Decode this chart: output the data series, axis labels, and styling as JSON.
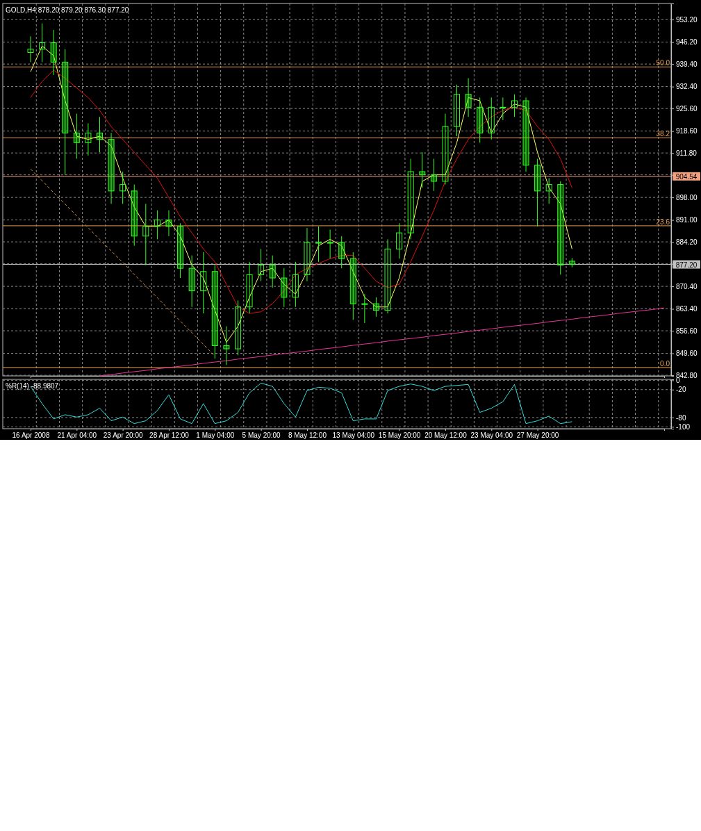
{
  "chart_data": [
    {
      "type": "candlestick",
      "title": "GOLD,H4  878.20 879.20 876.30 877.20",
      "categories": [
        null,
        null,
        null,
        null,
        null,
        null,
        null,
        null,
        null,
        null,
        null,
        null,
        null,
        null,
        null,
        null,
        null,
        null,
        null,
        null,
        null,
        null,
        null,
        null,
        null,
        null,
        null,
        null,
        null,
        null,
        null,
        null,
        null,
        null,
        null,
        null,
        null,
        null,
        null,
        null,
        null,
        null,
        null,
        null,
        null,
        null,
        null,
        null,
        null,
        null,
        null,
        null,
        null,
        null,
        null,
        null
      ],
      "color": "#33ff22",
      "ohlc": [
        [
          943,
          948,
          940,
          944
        ],
        [
          944,
          952,
          940,
          946
        ],
        [
          946,
          950,
          936,
          940
        ],
        [
          940,
          944,
          905,
          918
        ],
        [
          918,
          924,
          910,
          915
        ],
        [
          915,
          921,
          911,
          918
        ],
        [
          918,
          923,
          912,
          916
        ],
        [
          916,
          918,
          896,
          900
        ],
        [
          900,
          906,
          896,
          902
        ],
        [
          900,
          902,
          883,
          886
        ],
        [
          886,
          896,
          877,
          889
        ],
        [
          889,
          894,
          885,
          891
        ],
        [
          891,
          894,
          886,
          889
        ],
        [
          889,
          890,
          873,
          876
        ],
        [
          876,
          880,
          864,
          869
        ],
        [
          869,
          881,
          862,
          875
        ],
        [
          875,
          877,
          848,
          852
        ],
        [
          852,
          858,
          846,
          851
        ],
        [
          851,
          866,
          849,
          864
        ],
        [
          864,
          878,
          862,
          874
        ],
        [
          874,
          882,
          872,
          877
        ],
        [
          877,
          880,
          870,
          873
        ],
        [
          873,
          876,
          864,
          867
        ],
        [
          867,
          878,
          864,
          874
        ],
        [
          874,
          888.5,
          872,
          884
        ],
        [
          884,
          889,
          878,
          884
        ],
        [
          884,
          888,
          879,
          884
        ],
        [
          884,
          886,
          876,
          879
        ],
        [
          879,
          881,
          860,
          865
        ],
        [
          865,
          868,
          859,
          865
        ],
        [
          865,
          867,
          861,
          863
        ],
        [
          863,
          885,
          862,
          882
        ],
        [
          882,
          890,
          879,
          887
        ],
        [
          887,
          910,
          885,
          906
        ],
        [
          906,
          912,
          901,
          905
        ],
        [
          905,
          910,
          900,
          903
        ],
        [
          903,
          924,
          902,
          920
        ],
        [
          920,
          933,
          917,
          930
        ],
        [
          930,
          935,
          923,
          926
        ],
        [
          926,
          929,
          915,
          918
        ],
        [
          918,
          929,
          916,
          926
        ],
        [
          926,
          929,
          922,
          926
        ],
        [
          926,
          930,
          923,
          928
        ],
        [
          928,
          929,
          906,
          908
        ],
        [
          908,
          910,
          889,
          900
        ],
        [
          900,
          904,
          896,
          902
        ],
        [
          902,
          903,
          874,
          877
        ],
        [
          878.2,
          879.2,
          876.3,
          877.2
        ],
        null,
        null,
        null,
        null,
        null,
        null,
        null,
        null
      ],
      "series": [
        {
          "type": "line",
          "color": "#ffff66",
          "values": [
            937,
            945,
            942,
            928,
            917,
            916,
            917,
            914,
            904,
            895,
            889,
            889,
            891,
            886,
            877,
            873,
            863,
            853,
            858,
            867,
            875,
            876,
            871,
            868,
            875,
            883,
            885,
            883,
            875,
            867,
            864,
            864,
            873,
            887,
            903,
            905,
            905,
            915,
            929,
            928,
            918,
            924,
            927,
            926,
            912,
            901,
            896,
            882,
            null,
            null,
            null,
            null,
            null,
            null,
            null,
            null
          ]
        },
        {
          "type": "line",
          "color": "#dd1111",
          "values": [
            929,
            934,
            937.5,
            935,
            932,
            929,
            925,
            920,
            916,
            912,
            908,
            904,
            898,
            892,
            887,
            882,
            878,
            871,
            864,
            862,
            862.5,
            865,
            869,
            874,
            876,
            877.5,
            879,
            880,
            880,
            876,
            872,
            870,
            871,
            878,
            886,
            894,
            903,
            910,
            916,
            920,
            923,
            925,
            926,
            925,
            920,
            916,
            910,
            901,
            null,
            null,
            null,
            null,
            null,
            null,
            null,
            null
          ]
        },
        {
          "type": "line",
          "color": "#ee3399",
          "values": [
            null,
            null,
            null,
            null,
            null,
            null,
            842.6,
            843.0,
            843.5,
            843.9,
            844.3,
            844.8,
            845.2,
            845.6,
            846.0,
            846.5,
            846.9,
            847.3,
            847.8,
            848.2,
            848.6,
            849.1,
            849.5,
            849.9,
            850.3,
            850.8,
            851.2,
            851.6,
            852.1,
            852.5,
            852.9,
            853.4,
            853.8,
            854.2,
            854.6,
            855.1,
            855.5,
            855.9,
            856.4,
            856.8,
            857.2,
            857.7,
            858.1,
            858.5,
            858.9,
            859.4,
            859.8,
            860.2,
            860.7,
            861.1,
            861.5,
            862.0,
            862.4,
            862.8,
            863.2,
            863.7
          ]
        },
        {
          "type": "line",
          "color": "#d09040",
          "line_style": "dashed",
          "values": [
            906.8,
            903.2,
            899.5,
            895.9,
            892.3,
            888.6,
            885.0,
            881.4,
            877.8,
            874.1,
            870.5,
            866.9,
            863.2,
            859.6,
            856.0,
            852.4,
            848.7,
            null,
            null,
            null,
            null,
            null,
            null,
            null,
            null,
            null,
            null,
            null,
            null,
            null,
            null,
            null,
            null,
            null,
            null,
            null,
            null,
            null,
            null,
            null,
            null,
            null,
            null,
            null,
            null,
            null,
            null,
            null,
            null,
            null,
            null,
            null,
            null,
            null,
            null,
            null
          ]
        }
      ],
      "ylim": [
        842.6,
        958.2
      ],
      "yticks": [
        {
          "value": 953.2,
          "label": "953.20"
        },
        {
          "value": 946.2,
          "label": "946.20"
        },
        {
          "value": 939.4,
          "label": "939.40"
        },
        {
          "value": 932.4,
          "label": "932.40"
        },
        {
          "value": 925.6,
          "label": "925.60"
        },
        {
          "value": 918.6,
          "label": "918.60"
        },
        {
          "value": 911.8,
          "label": "911.80"
        },
        {
          "value": 905.0,
          "label": null
        },
        {
          "value": 898.0,
          "label": "898.00"
        },
        {
          "value": 891.0,
          "label": "891.00"
        },
        {
          "value": 884.2,
          "label": "884.20"
        },
        {
          "value": 877.4,
          "label": null
        },
        {
          "value": 870.4,
          "label": "870.40"
        },
        {
          "value": 863.4,
          "label": "863.40"
        },
        {
          "value": 856.6,
          "label": "856.60"
        },
        {
          "value": 849.6,
          "label": "849.60"
        },
        {
          "value": 842.8,
          "label": "842.80"
        }
      ],
      "grid": true,
      "tick_labels": "y",
      "ref_lines": [
        {
          "axis": "y",
          "value": 938.5,
          "color": "#e8a050"
        },
        {
          "axis": "y",
          "value": 916.5,
          "color": "#e8a050"
        },
        {
          "axis": "y",
          "value": 889.2,
          "color": "#e8a050"
        },
        {
          "axis": "y",
          "value": 845.2,
          "color": "#e8a050"
        },
        {
          "axis": "y",
          "value": 904.54,
          "label": "904.54",
          "color": "#f0a080"
        },
        {
          "axis": "y",
          "value": 877.2,
          "label": "877.20",
          "color": "#c0c0c0"
        }
      ],
      "annotations": [
        {
          "text": "50.0",
          "y": 938.5
        },
        {
          "text": "38.2",
          "y": 916.5
        },
        {
          "text": "23.6",
          "y": 889.2
        },
        {
          "text": "0.0",
          "y": 845.2
        }
      ]
    },
    {
      "type": "line",
      "title": "%R(14) -88.9807",
      "categories": [
        "16 Apr 2008",
        null,
        null,
        null,
        "21 Apr 04:00",
        null,
        null,
        null,
        "23 Apr 20:00",
        null,
        null,
        null,
        "28 Apr 12:00",
        null,
        null,
        null,
        "1 May 04:00",
        null,
        null,
        null,
        "5 May 20:00",
        null,
        null,
        null,
        "8 May 12:00",
        null,
        null,
        null,
        "13 May 04:00",
        null,
        null,
        null,
        "15 May 20:00",
        null,
        null,
        null,
        "20 May 12:00",
        null,
        null,
        null,
        "23 May 04:00",
        null,
        null,
        null,
        "27 May 20:00",
        null,
        null,
        null,
        null,
        null,
        null,
        null,
        null,
        null,
        null,
        null
      ],
      "series": [
        {
          "color": "#33dddd",
          "values": [
            -13,
            -50,
            -83,
            -74,
            -79,
            -74,
            -60,
            -87,
            -79,
            -93,
            -87,
            -65,
            -31,
            -83,
            -93,
            -50,
            -93,
            -87,
            -69,
            -27,
            -6,
            -13,
            -50,
            -79,
            -22,
            -15,
            -17,
            -27,
            -87,
            -83,
            -83,
            -22,
            -13,
            -8,
            -13,
            -22,
            -13,
            -11,
            -9,
            -69,
            -60,
            -46,
            -9,
            -93,
            -87,
            -77,
            -93,
            -89,
            null,
            null,
            null,
            null,
            null,
            null,
            null,
            null
          ]
        }
      ],
      "ylim": [
        -104,
        2
      ],
      "yticks": [
        0,
        -20,
        -80,
        -100
      ],
      "grid": true
    }
  ]
}
